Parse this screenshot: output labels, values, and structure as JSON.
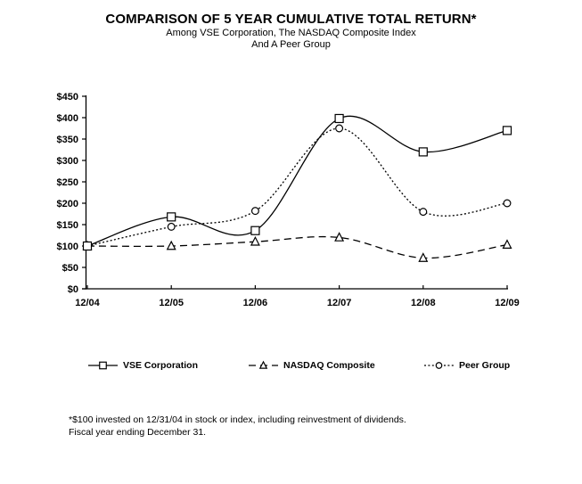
{
  "header": {
    "title": "COMPARISON OF 5 YEAR CUMULATIVE TOTAL RETURN*",
    "subtitle_line1": "Among VSE Corporation, The NASDAQ Composite Index",
    "subtitle_line2": "And A Peer Group"
  },
  "footnote": {
    "line1": "*$100 invested on 12/31/04 in stock or index, including reinvestment of dividends.",
    "line2": "Fiscal year ending December 31."
  },
  "colors": {
    "foreground": "#000000",
    "background": "#ffffff",
    "marker_fill": "#ffffff"
  },
  "chart_data": {
    "type": "line",
    "title": "COMPARISON OF 5 YEAR CUMULATIVE TOTAL RETURN*",
    "xlabel": "",
    "ylabel": "",
    "categories": [
      "12/04",
      "12/05",
      "12/06",
      "12/07",
      "12/08",
      "12/09"
    ],
    "series": [
      {
        "name": "VSE Corporation",
        "line_style": "solid",
        "marker": "square",
        "values": [
          100,
          168,
          136,
          398,
          320,
          370
        ]
      },
      {
        "name": "NASDAQ Composite",
        "line_style": "dashed",
        "marker": "triangle",
        "values": [
          100,
          100,
          110,
          120,
          72,
          103
        ]
      },
      {
        "name": "Peer Group",
        "line_style": "dotted",
        "marker": "circle",
        "values": [
          100,
          145,
          182,
          375,
          180,
          200
        ]
      }
    ],
    "ylim": [
      0,
      450
    ],
    "y_tick_step": 50,
    "y_tick_labels": [
      "$0",
      "$50",
      "$100",
      "$150",
      "$200",
      "$250",
      "$300",
      "$350",
      "$400",
      "$450"
    ],
    "grid": false,
    "legend_position": "bottom"
  }
}
